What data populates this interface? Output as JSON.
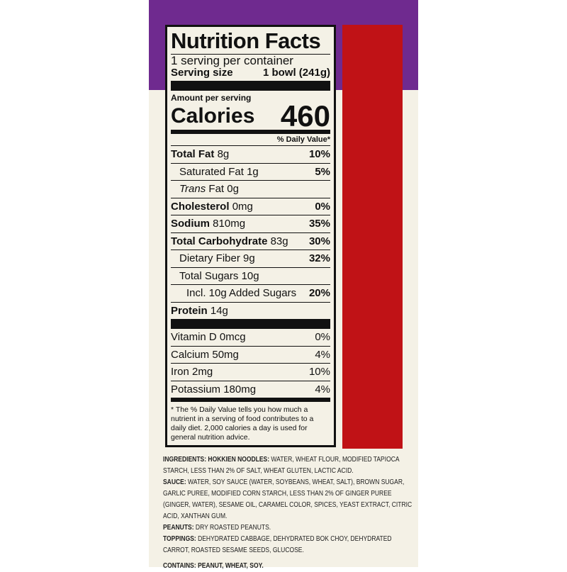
{
  "colors": {
    "purple": "#6f2a8f",
    "red": "#c01216",
    "cream": "#f4f1e6"
  },
  "label": {
    "title": "Nutrition Facts",
    "servings": "1 serving per container",
    "serving_size_label": "Serving size",
    "serving_size_value": "1 bowl (241g)",
    "amount_per_serving": "Amount per serving",
    "calories_label": "Calories",
    "calories_value": "460",
    "dv_header": "% Daily Value*",
    "nutrients": [
      {
        "name": "Total Fat",
        "amount": "8g",
        "dv": "10%"
      },
      {
        "name": "Saturated Fat",
        "amount": "1g",
        "dv": "5%"
      },
      {
        "name": "Trans",
        "amount": "Fat 0g",
        "dv": ""
      },
      {
        "name": "Cholesterol",
        "amount": "0mg",
        "dv": "0%"
      },
      {
        "name": "Sodium",
        "amount": "810mg",
        "dv": "35%"
      },
      {
        "name": "Total Carbohydrate",
        "amount": "83g",
        "dv": "30%"
      },
      {
        "name": "Dietary Fiber",
        "amount": "9g",
        "dv": "32%"
      },
      {
        "name": "Total Sugars",
        "amount": "10g",
        "dv": ""
      },
      {
        "name": "Incl. 10g Added Sugars",
        "amount": "",
        "dv": "20%"
      },
      {
        "name": "Protein",
        "amount": "14g",
        "dv": ""
      }
    ],
    "vitamins": [
      {
        "name": "Vitamin D",
        "amount": "0mcg",
        "dv": "0%"
      },
      {
        "name": "Calcium",
        "amount": "50mg",
        "dv": "4%"
      },
      {
        "name": "Iron",
        "amount": "2mg",
        "dv": "10%"
      },
      {
        "name": "Potassium",
        "amount": "180mg",
        "dv": "4%"
      }
    ],
    "footnote": "* The % Daily Value tells you how much a nutrient in a serving of food contributes to a daily diet. 2,000 calories a day is used for general nutrition advice."
  },
  "ingredients": {
    "noodles_label": "INGREDIENTS: HOKKIEN NOODLES:",
    "noodles": "WATER, WHEAT FLOUR, MODIFIED TAPIOCA STARCH, LESS THAN 2% OF SALT, WHEAT GLUTEN, LACTIC ACID.",
    "sauce_label": "SAUCE:",
    "sauce": "WATER, SOY SAUCE (WATER, SOYBEANS, WHEAT, SALT), BROWN SUGAR, GARLIC PUREE, MODIFIED CORN STARCH, LESS THAN 2% OF GINGER PUREE (GINGER, WATER), SESAME OIL, CARAMEL COLOR, SPICES, YEAST EXTRACT, CITRIC ACID, XANTHAN GUM.",
    "peanuts_label": "PEANUTS:",
    "peanuts": "DRY ROASTED PEANUTS.",
    "toppings_label": "TOPPINGS:",
    "toppings": "DEHYDRATED CABBAGE, DEHYDRATED BOK CHOY, DEHYDRATED CARROT, ROASTED SESAME SEEDS, GLUCOSE.",
    "contains": "CONTAINS: PEANUT, WHEAT, SOY."
  }
}
